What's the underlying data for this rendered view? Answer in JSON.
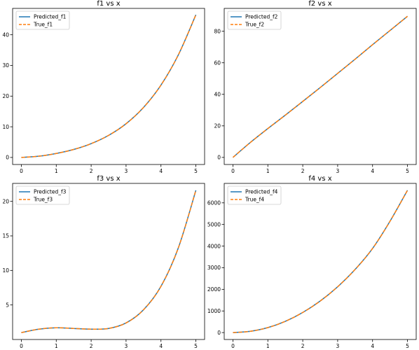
{
  "chart_data": [
    {
      "type": "line",
      "title": "f1 vs x",
      "xlabel": "",
      "ylabel": "",
      "xlim": [
        -0.25,
        5.25
      ],
      "ylim": [
        -2.3,
        48.6
      ],
      "xticks": [
        0,
        1,
        2,
        3,
        4,
        5
      ],
      "yticks": [
        0,
        10,
        20,
        30,
        40
      ],
      "legend": "top-left",
      "grid": false,
      "x": [
        0,
        0.5,
        1,
        1.5,
        2,
        2.5,
        3,
        3.5,
        4,
        4.5,
        5
      ],
      "series": [
        {
          "name": "Predicted_f1",
          "color": "#1f77b4",
          "style": "solid",
          "values": [
            0,
            0.4,
            1.3,
            2.6,
            4.5,
            7.2,
            11.0,
            16.3,
            23.6,
            33.5,
            46.5
          ]
        },
        {
          "name": "True_f1",
          "color": "#ff7f0e",
          "style": "dashed",
          "values": [
            0,
            0.4,
            1.3,
            2.6,
            4.5,
            7.2,
            11.0,
            16.3,
            23.6,
            33.5,
            46.5
          ]
        }
      ]
    },
    {
      "type": "line",
      "title": "f2 vs x",
      "xlabel": "",
      "ylabel": "",
      "xlim": [
        -0.25,
        5.25
      ],
      "ylim": [
        -4.5,
        94.5
      ],
      "xticks": [
        0,
        1,
        2,
        3,
        4,
        5
      ],
      "yticks": [
        0,
        20,
        40,
        60,
        80
      ],
      "legend": "top-left",
      "grid": false,
      "x": [
        0,
        0.5,
        1,
        1.5,
        2,
        2.5,
        3,
        3.5,
        4,
        4.5,
        5
      ],
      "series": [
        {
          "name": "Predicted_f2",
          "color": "#1f77b4",
          "style": "solid",
          "values": [
            0,
            9.5,
            18.3,
            26.8,
            35.5,
            44.3,
            53.3,
            62.3,
            71.5,
            80.5,
            89.5
          ]
        },
        {
          "name": "True_f2",
          "color": "#ff7f0e",
          "style": "dashed",
          "values": [
            0,
            9.5,
            18.3,
            26.8,
            35.5,
            44.3,
            53.3,
            62.3,
            71.5,
            80.5,
            89.5
          ]
        }
      ]
    },
    {
      "type": "line",
      "title": "f3 vs x",
      "xlabel": "",
      "ylabel": "",
      "xlim": [
        -0.25,
        5.25
      ],
      "ylim": [
        0.0,
        22.6
      ],
      "xticks": [
        0,
        1,
        2,
        3,
        4,
        5
      ],
      "yticks": [
        5,
        10,
        15,
        20
      ],
      "legend": "top-left",
      "grid": false,
      "x": [
        0,
        0.5,
        1,
        1.5,
        2,
        2.5,
        3,
        3.5,
        4,
        4.5,
        5
      ],
      "series": [
        {
          "name": "Predicted_f3",
          "color": "#1f77b4",
          "style": "solid",
          "values": [
            1.0,
            1.5,
            1.7,
            1.6,
            1.5,
            1.6,
            2.4,
            4.3,
            7.7,
            13.3,
            21.6
          ]
        },
        {
          "name": "True_f3",
          "color": "#ff7f0e",
          "style": "dashed",
          "values": [
            1.0,
            1.5,
            1.7,
            1.6,
            1.5,
            1.6,
            2.4,
            4.3,
            7.7,
            13.3,
            21.6
          ]
        }
      ]
    },
    {
      "type": "line",
      "title": "f4 vs x",
      "xlabel": "",
      "ylabel": "",
      "xlim": [
        -0.25,
        5.25
      ],
      "ylim": [
        -320,
        6900
      ],
      "xticks": [
        0,
        1,
        2,
        3,
        4,
        5
      ],
      "yticks": [
        0,
        1000,
        2000,
        3000,
        4000,
        5000,
        6000
      ],
      "legend": "top-left",
      "grid": false,
      "x": [
        0,
        0.5,
        1,
        1.5,
        2,
        2.5,
        3,
        3.5,
        4,
        4.5,
        5
      ],
      "series": [
        {
          "name": "Predicted_f4",
          "color": "#1f77b4",
          "style": "solid",
          "values": [
            0,
            60,
            230,
            520,
            930,
            1460,
            2120,
            2920,
            3890,
            5150,
            6580
          ]
        },
        {
          "name": "True_f4",
          "color": "#ff7f0e",
          "style": "dashed",
          "values": [
            0,
            60,
            230,
            520,
            930,
            1460,
            2120,
            2920,
            3890,
            5150,
            6580
          ]
        }
      ]
    }
  ]
}
